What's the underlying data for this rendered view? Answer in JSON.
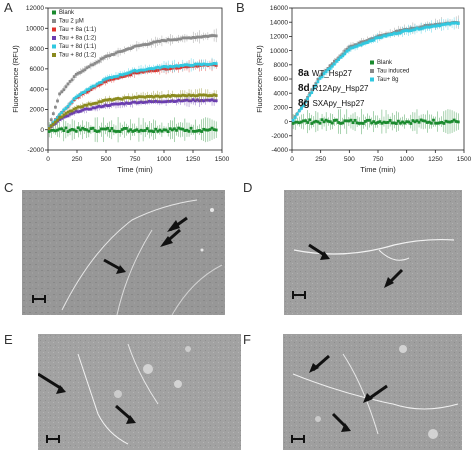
{
  "panels": {
    "A": "A",
    "B": "B",
    "C": "C",
    "D": "D",
    "E": "E",
    "F": "F"
  },
  "colors": {
    "blank": "#1a8a2e",
    "tau": "#8a8a8a",
    "tau8a_11": "#e0302a",
    "tau8a_12": "#6a3db0",
    "tau8d_11": "#30c8e0",
    "tau8d_12": "#8a8a1e",
    "tau_induced": "#8a8a8a",
    "tau8g": "#30c8e0"
  },
  "chart_data": [
    {
      "type": "line",
      "panel": "A",
      "xlabel": "Time (min)",
      "ylabel": "Fluorescence (RFU)",
      "xlim": [
        0,
        1500
      ],
      "ylim": [
        -2000,
        12000
      ],
      "xticks": [
        "0",
        "250",
        "500",
        "750",
        "1000",
        "1250",
        "1500"
      ],
      "yticks": [
        "-2000",
        "0",
        "2000",
        "4000",
        "6000",
        "8000",
        "10000",
        "12000"
      ],
      "legend_position": "top-left",
      "series": [
        {
          "name": "Blank",
          "legend_label": "Blank",
          "color_key": "blank",
          "x": [
            0,
            250,
            500,
            750,
            1000,
            1250,
            1450
          ],
          "values": [
            0,
            0,
            0,
            0,
            0,
            0,
            0
          ]
        },
        {
          "name": "Tau 2 µM",
          "legend_label": "Tau 2 µM",
          "color_key": "tau",
          "x": [
            0,
            100,
            250,
            500,
            750,
            1000,
            1250,
            1450
          ],
          "values": [
            0,
            3500,
            5500,
            7200,
            8200,
            8800,
            9100,
            9300
          ]
        },
        {
          "name": "Tau + 8a (1:1)",
          "legend_label": "Tau + 8a (1:1)",
          "color_key": "tau8a_11",
          "x": [
            0,
            100,
            250,
            500,
            750,
            1000,
            1250,
            1450
          ],
          "values": [
            0,
            1500,
            3200,
            4800,
            5600,
            6000,
            6300,
            6400
          ]
        },
        {
          "name": "Tau + 8a (1:2)",
          "legend_label": "Tau + 8a (1:2)",
          "color_key": "tau8a_12",
          "x": [
            0,
            100,
            250,
            500,
            750,
            1000,
            1250,
            1450
          ],
          "values": [
            0,
            1000,
            1800,
            2400,
            2700,
            2800,
            2900,
            2900
          ]
        },
        {
          "name": "Tau + 8d (1:1)",
          "legend_label": "Tau + 8d (1:1)",
          "color_key": "tau8d_11",
          "x": [
            0,
            100,
            250,
            500,
            750,
            1000,
            1250,
            1450
          ],
          "values": [
            0,
            1500,
            3300,
            5000,
            5800,
            6200,
            6400,
            6500
          ]
        },
        {
          "name": "Tau + 8d (1:2)",
          "legend_label": "Tau + 8d (1:2)",
          "color_key": "tau8d_12",
          "x": [
            0,
            100,
            250,
            500,
            750,
            1000,
            1250,
            1450
          ],
          "values": [
            0,
            1200,
            2200,
            2900,
            3200,
            3300,
            3400,
            3400
          ]
        }
      ]
    },
    {
      "type": "line",
      "panel": "B",
      "xlabel": "Time (min)",
      "ylabel": "Fluorescence (RFU)",
      "xlim": [
        0,
        1500
      ],
      "ylim": [
        -4000,
        16000
      ],
      "xticks": [
        "0",
        "250",
        "500",
        "750",
        "1000",
        "1250",
        "1500"
      ],
      "yticks": [
        "-4000",
        "-2000",
        "0",
        "2000",
        "4000",
        "6000",
        "8000",
        "10000",
        "12000",
        "14000",
        "16000"
      ],
      "legend_position": "center-right",
      "series": [
        {
          "name": "Blank",
          "legend_label": "Blank",
          "color_key": "blank",
          "x": [
            0,
            250,
            500,
            750,
            1000,
            1250,
            1450
          ],
          "values": [
            0,
            0,
            0,
            0,
            0,
            0,
            0
          ]
        },
        {
          "name": "Tau induced",
          "legend_label": "Tau induced",
          "color_key": "tau_induced",
          "x": [
            0,
            100,
            250,
            500,
            750,
            1000,
            1250,
            1450
          ],
          "values": [
            0,
            2500,
            6500,
            10500,
            12000,
            13000,
            13700,
            14000
          ]
        },
        {
          "name": "Tau+ 8g",
          "legend_label": "Tau+ 8g",
          "color_key": "tau8g",
          "x": [
            0,
            100,
            250,
            500,
            750,
            1000,
            1250,
            1450
          ],
          "values": [
            0,
            2300,
            6200,
            10200,
            11800,
            12800,
            13500,
            13900
          ]
        }
      ],
      "annotations": [
        {
          "bold": "8a",
          "text": "WT_Hsp27"
        },
        {
          "bold": "8d",
          "text": "R12Apy_Hsp27"
        },
        {
          "bold": "8g",
          "text": "SXApy_Hsp27"
        }
      ]
    }
  ]
}
